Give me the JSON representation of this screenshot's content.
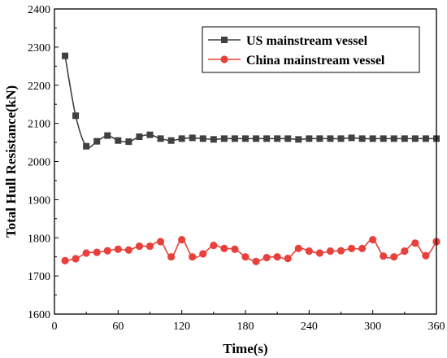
{
  "chart_data": {
    "type": "line",
    "xlabel": "Time(s)",
    "ylabel": "Total Hull Resistance(kN)",
    "xlim": [
      0,
      360
    ],
    "ylim": [
      1600,
      2400
    ],
    "xticks": [
      0,
      60,
      120,
      180,
      240,
      300,
      360
    ],
    "yticks": [
      1600,
      1700,
      1800,
      1900,
      2000,
      2100,
      2200,
      2300,
      2400
    ],
    "legend_position": "top-right",
    "grid": false,
    "x": [
      10,
      20,
      30,
      40,
      50,
      60,
      70,
      80,
      90,
      100,
      110,
      120,
      130,
      140,
      150,
      160,
      170,
      180,
      190,
      200,
      210,
      220,
      230,
      240,
      250,
      260,
      270,
      280,
      290,
      300,
      310,
      320,
      330,
      340,
      350,
      360
    ],
    "series": [
      {
        "name": "US mainstream vessel",
        "color": "#404040",
        "marker": "square",
        "values": [
          2277,
          2120,
          2040,
          2053,
          2068,
          2055,
          2052,
          2065,
          2070,
          2060,
          2055,
          2060,
          2062,
          2060,
          2058,
          2060,
          2060,
          2060,
          2060,
          2060,
          2060,
          2060,
          2058,
          2060,
          2060,
          2060,
          2060,
          2062,
          2060,
          2060,
          2060,
          2060,
          2060,
          2060,
          2060,
          2060
        ]
      },
      {
        "name": "China mainstream vessel",
        "color": "#e8413c",
        "marker": "circle",
        "values": [
          1740,
          1745,
          1760,
          1762,
          1766,
          1770,
          1768,
          1778,
          1778,
          1790,
          1750,
          1795,
          1750,
          1758,
          1780,
          1772,
          1770,
          1750,
          1738,
          1748,
          1750,
          1746,
          1772,
          1765,
          1760,
          1765,
          1766,
          1772,
          1772,
          1795,
          1752,
          1750,
          1765,
          1786,
          1753,
          1790
        ]
      }
    ]
  }
}
